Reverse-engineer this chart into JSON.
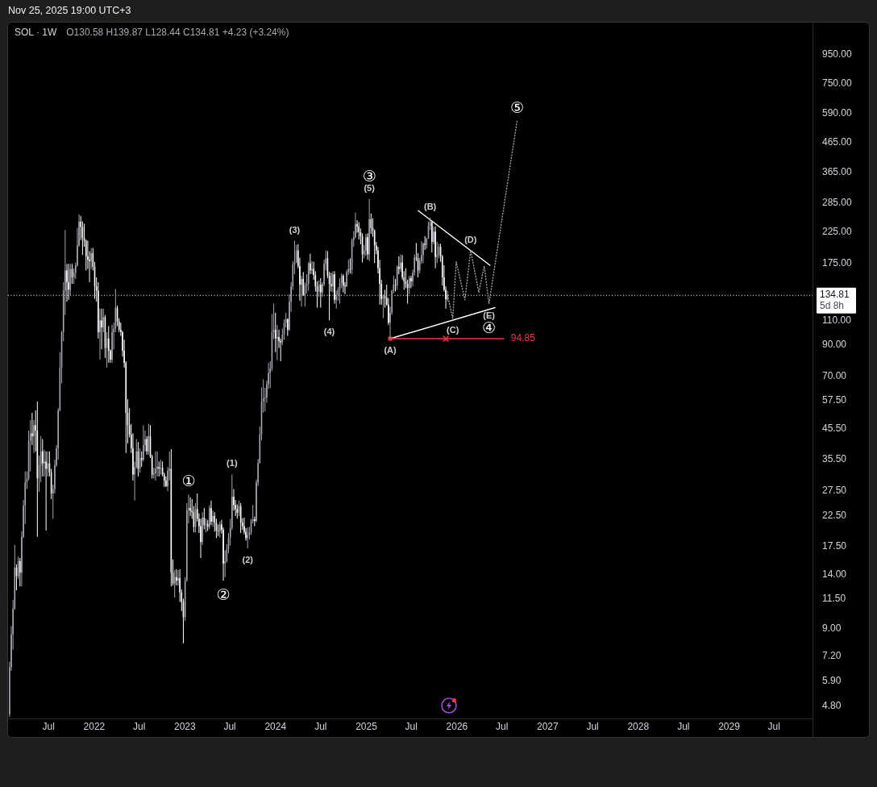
{
  "chart_data": {
    "type": "candlestick",
    "title": "SOL · 1W",
    "subtitle": "O130.58 H139.87 L128.44 C134.81 +4.23 (+3.24%)",
    "x": [
      "2021-01-25",
      "2021-02-01",
      "2021-02-08",
      "2021-02-15",
      "2021-02-22",
      "2021-03-01",
      "2021-03-08",
      "2021-03-15",
      "2021-03-22",
      "2021-03-29",
      "2021-04-05",
      "2021-04-12",
      "2021-04-19",
      "2021-04-26",
      "2021-05-03",
      "2021-05-10",
      "2021-05-17",
      "2021-05-24",
      "2021-05-31",
      "2021-06-07",
      "2021-06-14",
      "2021-06-21",
      "2021-06-28",
      "2021-07-05",
      "2021-07-12",
      "2021-07-19",
      "2021-07-26",
      "2021-08-02",
      "2021-08-09",
      "2021-08-16",
      "2021-08-23",
      "2021-08-30",
      "2021-09-06",
      "2021-09-13",
      "2021-09-20",
      "2021-09-27",
      "2021-10-04",
      "2021-10-11",
      "2021-10-18",
      "2021-10-25",
      "2021-11-01",
      "2021-11-08",
      "2021-11-15",
      "2021-11-22",
      "2021-11-29",
      "2021-12-06",
      "2021-12-13",
      "2021-12-20",
      "2021-12-27",
      "2022-01-03",
      "2022-01-10",
      "2022-01-17",
      "2022-01-24",
      "2022-01-31",
      "2022-02-07",
      "2022-02-14",
      "2022-02-21",
      "2022-02-28",
      "2022-03-07",
      "2022-03-14",
      "2022-03-21",
      "2022-03-28",
      "2022-04-04",
      "2022-04-11",
      "2022-04-18",
      "2022-04-25",
      "2022-05-02",
      "2022-05-09",
      "2022-05-16",
      "2022-05-23",
      "2022-05-30",
      "2022-06-06",
      "2022-06-13",
      "2022-06-20",
      "2022-06-27",
      "2022-07-04",
      "2022-07-11",
      "2022-07-18",
      "2022-07-25",
      "2022-08-01",
      "2022-08-08",
      "2022-08-15",
      "2022-08-22",
      "2022-08-29",
      "2022-09-05",
      "2022-09-12",
      "2022-09-19",
      "2022-09-26",
      "2022-10-03",
      "2022-10-10",
      "2022-10-17",
      "2022-10-24",
      "2022-10-31",
      "2022-11-07",
      "2022-11-14",
      "2022-11-21",
      "2022-11-28",
      "2022-12-05",
      "2022-12-12",
      "2022-12-19",
      "2022-12-26",
      "2023-01-02",
      "2023-01-09",
      "2023-01-16",
      "2023-01-23",
      "2023-01-30",
      "2023-02-06",
      "2023-02-13",
      "2023-02-20",
      "2023-02-27",
      "2023-03-06",
      "2023-03-13",
      "2023-03-20",
      "2023-03-27",
      "2023-04-03",
      "2023-04-10",
      "2023-04-17",
      "2023-04-24",
      "2023-05-01",
      "2023-05-08",
      "2023-05-15",
      "2023-05-22",
      "2023-05-29",
      "2023-06-05",
      "2023-06-12",
      "2023-06-19",
      "2023-06-26",
      "2023-07-03",
      "2023-07-10",
      "2023-07-17",
      "2023-07-24",
      "2023-07-31",
      "2023-08-07",
      "2023-08-14",
      "2023-08-21",
      "2023-08-28",
      "2023-09-04",
      "2023-09-11",
      "2023-09-18",
      "2023-09-25",
      "2023-10-02",
      "2023-10-09",
      "2023-10-16",
      "2023-10-23",
      "2023-10-30",
      "2023-11-06",
      "2023-11-13",
      "2023-11-20",
      "2023-11-27",
      "2023-12-04",
      "2023-12-11",
      "2023-12-18",
      "2023-12-25",
      "2024-01-01",
      "2024-01-08",
      "2024-01-15",
      "2024-01-22",
      "2024-01-29",
      "2024-02-05",
      "2024-02-12",
      "2024-02-19",
      "2024-02-26",
      "2024-03-04",
      "2024-03-11",
      "2024-03-18",
      "2024-03-25",
      "2024-04-01",
      "2024-04-08",
      "2024-04-15",
      "2024-04-22",
      "2024-04-29",
      "2024-05-06",
      "2024-05-13",
      "2024-05-20",
      "2024-05-27",
      "2024-06-03",
      "2024-06-10",
      "2024-06-17",
      "2024-06-24",
      "2024-07-01",
      "2024-07-08",
      "2024-07-15",
      "2024-07-22",
      "2024-07-29",
      "2024-08-05",
      "2024-08-12",
      "2024-08-19",
      "2024-08-26",
      "2024-09-02",
      "2024-09-09",
      "2024-09-16",
      "2024-09-23",
      "2024-09-30",
      "2024-10-07",
      "2024-10-14",
      "2024-10-21",
      "2024-10-28",
      "2024-11-04",
      "2024-11-11",
      "2024-11-18",
      "2024-11-25",
      "2024-12-02",
      "2024-12-09",
      "2024-12-16",
      "2024-12-23",
      "2024-12-30",
      "2025-01-06",
      "2025-01-13",
      "2025-01-20",
      "2025-01-27",
      "2025-02-03",
      "2025-02-10",
      "2025-02-17",
      "2025-02-24",
      "2025-03-03",
      "2025-03-10",
      "2025-03-17",
      "2025-03-24",
      "2025-03-31",
      "2025-04-07",
      "2025-04-14",
      "2025-04-21",
      "2025-04-28",
      "2025-05-05",
      "2025-05-12",
      "2025-05-19",
      "2025-05-26",
      "2025-06-02",
      "2025-06-09",
      "2025-06-16",
      "2025-06-23",
      "2025-06-30",
      "2025-07-07",
      "2025-07-14",
      "2025-07-21",
      "2025-07-28",
      "2025-08-04",
      "2025-08-11",
      "2025-08-18",
      "2025-08-25",
      "2025-09-01",
      "2025-09-08",
      "2025-09-15",
      "2025-09-22",
      "2025-09-29",
      "2025-10-06",
      "2025-10-13",
      "2025-10-20",
      "2025-10-27",
      "2025-11-03",
      "2025-11-10",
      "2025-11-17",
      "2025-11-24"
    ],
    "ohlc": [
      [
        4.5,
        6.9,
        4.4,
        6.6
      ],
      [
        6.6,
        9.2,
        6.4,
        8.6
      ],
      [
        8.6,
        11.4,
        7.6,
        10.6
      ],
      [
        10.6,
        17.8,
        10.5,
        14.8
      ],
      [
        14.8,
        15.2,
        12.3,
        13.8
      ],
      [
        13.8,
        16.2,
        13.5,
        15.6
      ],
      [
        15.6,
        16.0,
        12.7,
        14.2
      ],
      [
        14.2,
        19.9,
        12.7,
        19.0
      ],
      [
        19.0,
        25.6,
        18.8,
        24.5
      ],
      [
        24.5,
        32.3,
        21.1,
        29.6
      ],
      [
        29.6,
        32.3,
        28.0,
        30.4
      ],
      [
        30.4,
        45.0,
        30.0,
        41.5
      ],
      [
        41.5,
        49.0,
        32.3,
        44.0
      ],
      [
        44.0,
        52.0,
        40.0,
        43.0
      ],
      [
        43.0,
        49.0,
        37.5,
        47.0
      ],
      [
        47.0,
        53.0,
        38.0,
        45.0
      ],
      [
        45.0,
        57.0,
        19.0,
        30.5
      ],
      [
        30.5,
        36.7,
        27.4,
        34.0
      ],
      [
        34.0,
        43.0,
        29.6,
        38.0
      ],
      [
        38.0,
        42.0,
        31.0,
        34.5
      ],
      [
        34.5,
        38.5,
        31.0,
        35.0
      ],
      [
        35.0,
        38.0,
        20.0,
        33.0
      ],
      [
        33.0,
        38.0,
        31.0,
        34.5
      ],
      [
        34.5,
        38.0,
        31.0,
        32.0
      ],
      [
        32.0,
        33.0,
        25.8,
        27.0
      ],
      [
        27.0,
        29.0,
        22.0,
        28.0
      ],
      [
        28.0,
        35.5,
        27.0,
        34.0
      ],
      [
        34.0,
        40.0,
        33.5,
        39.0
      ],
      [
        39.0,
        54.0,
        35.5,
        53.0
      ],
      [
        53.0,
        85.0,
        52.6,
        75.0
      ],
      [
        75.0,
        101,
        66.0,
        100
      ],
      [
        100,
        150,
        93.0,
        140
      ],
      [
        140,
        229,
        115,
        165
      ],
      [
        165,
        174,
        128,
        150
      ],
      [
        150,
        174,
        130,
        141
      ],
      [
        141,
        174,
        135,
        167
      ],
      [
        167,
        174,
        148,
        156
      ],
      [
        156,
        168,
        148,
        162
      ],
      [
        162,
        176,
        154,
        172
      ],
      [
        172,
        233,
        170,
        202
      ],
      [
        202,
        260,
        200,
        245
      ],
      [
        245,
        257,
        211,
        235
      ],
      [
        235,
        246,
        187,
        215
      ],
      [
        215,
        241,
        200,
        210
      ],
      [
        210,
        212,
        165,
        185
      ],
      [
        185,
        210,
        167,
        180
      ],
      [
        180,
        193,
        150,
        178
      ],
      [
        178,
        198,
        167,
        190
      ],
      [
        190,
        198,
        165,
        170
      ],
      [
        170,
        177,
        131,
        145
      ],
      [
        145,
        156,
        128,
        140
      ],
      [
        140,
        150,
        95,
        100
      ],
      [
        100,
        121,
        80,
        110
      ],
      [
        110,
        121,
        87,
        104
      ],
      [
        104,
        121,
        100,
        113
      ],
      [
        113,
        115,
        81,
        88
      ],
      [
        88,
        100,
        75,
        95
      ],
      [
        95,
        105,
        78,
        86
      ],
      [
        86,
        87,
        78,
        80
      ],
      [
        80,
        106,
        78,
        100
      ],
      [
        100,
        108,
        87,
        103
      ],
      [
        103,
        142,
        100,
        122
      ],
      [
        122,
        124,
        105,
        109
      ],
      [
        109,
        112,
        100,
        102
      ],
      [
        102,
        108,
        97,
        100
      ],
      [
        100,
        101,
        82,
        86
      ],
      [
        86,
        94,
        75,
        78
      ],
      [
        78,
        79,
        37.5,
        52
      ],
      [
        52,
        58,
        40.5,
        47
      ],
      [
        47,
        54,
        42.5,
        43.5
      ],
      [
        43.5,
        47.5,
        37.5,
        39
      ],
      [
        39,
        44,
        30,
        31.5
      ],
      [
        31.5,
        35,
        25.5,
        33.5
      ],
      [
        33.5,
        42,
        33,
        38
      ],
      [
        38,
        41,
        31,
        33
      ],
      [
        33,
        39,
        32,
        36
      ],
      [
        36,
        38,
        33.5,
        35.5
      ],
      [
        35.5,
        47,
        35,
        40
      ],
      [
        40,
        45,
        38,
        42
      ],
      [
        42,
        43,
        37,
        38
      ],
      [
        38,
        47.5,
        37,
        43
      ],
      [
        43,
        47,
        36,
        36.5
      ],
      [
        36.5,
        37,
        30.5,
        31.5
      ],
      [
        31.5,
        33.3,
        30.5,
        31.8
      ],
      [
        31.8,
        38,
        30,
        33
      ],
      [
        33,
        38,
        31,
        33.5
      ],
      [
        33.5,
        35,
        31,
        33
      ],
      [
        33,
        35.5,
        31.5,
        33.3
      ],
      [
        33.3,
        35,
        31,
        31.5
      ],
      [
        31.5,
        32,
        28.5,
        30
      ],
      [
        30,
        31,
        28.5,
        28.6
      ],
      [
        28.6,
        33.5,
        27.5,
        32.5
      ],
      [
        32.5,
        38,
        30,
        33
      ],
      [
        33,
        38.7,
        12.7,
        14.2
      ],
      [
        14.2,
        15.8,
        12.8,
        13.0
      ],
      [
        13.0,
        14.5,
        11.6,
        13.7
      ],
      [
        13.7,
        14.6,
        12.8,
        13.3
      ],
      [
        13.3,
        14.5,
        12.8,
        13.6
      ],
      [
        13.6,
        14.6,
        11.2,
        12.1
      ],
      [
        12.1,
        12.4,
        10.4,
        11.2
      ],
      [
        11.2,
        11.5,
        8.0,
        9.9
      ],
      [
        9.9,
        13.7,
        9.6,
        13.3
      ],
      [
        13.3,
        25.0,
        13.2,
        23.6
      ],
      [
        23.6,
        26.8,
        21.2,
        24.0
      ],
      [
        24.0,
        26.2,
        22.5,
        23.5
      ],
      [
        23.5,
        25.8,
        22.0,
        23.2
      ],
      [
        23.2,
        24.4,
        19.7,
        20.6
      ],
      [
        20.6,
        25.0,
        19.7,
        23.8
      ],
      [
        23.8,
        27.0,
        21.5,
        22.0
      ],
      [
        22.0,
        23.0,
        19.6,
        20.7
      ],
      [
        20.7,
        22.0,
        16.0,
        18.2
      ],
      [
        18.2,
        23.2,
        17.8,
        22.2
      ],
      [
        22.2,
        24.0,
        20.2,
        20.9
      ],
      [
        20.9,
        22.0,
        19.7,
        21.1
      ],
      [
        21.1,
        21.8,
        19.9,
        20.6
      ],
      [
        20.6,
        24.6,
        20.2,
        24.0
      ],
      [
        24.0,
        25.5,
        20.9,
        21.5
      ],
      [
        21.5,
        23.5,
        20.6,
        22.5
      ],
      [
        22.5,
        23.2,
        19.8,
        21.3
      ],
      [
        21.3,
        22.0,
        18.8,
        20.0
      ],
      [
        20.0,
        21.0,
        19.1,
        19.9
      ],
      [
        19.9,
        21.5,
        18.9,
        21.0
      ],
      [
        21.0,
        21.8,
        19.5,
        20.1
      ],
      [
        20.1,
        20.5,
        13.3,
        15.3
      ],
      [
        15.3,
        17.0,
        13.7,
        15.6
      ],
      [
        15.6,
        17.9,
        15.4,
        17.2
      ],
      [
        17.2,
        19.6,
        16.6,
        18.9
      ],
      [
        18.9,
        22.0,
        17.7,
        20.4
      ],
      [
        20.4,
        31.5,
        20.1,
        26.3
      ],
      [
        26.3,
        28.0,
        23.5,
        24.6
      ],
      [
        24.6,
        25.6,
        22.5,
        23.8
      ],
      [
        23.8,
        24.7,
        22.0,
        23.1
      ],
      [
        23.1,
        25.5,
        22.5,
        24.4
      ],
      [
        24.4,
        25.0,
        19.6,
        21.3
      ],
      [
        21.3,
        22.1,
        20.1,
        20.7
      ],
      [
        20.7,
        22.2,
        19.4,
        19.8
      ],
      [
        19.8,
        20.4,
        18.4,
        18.8
      ],
      [
        18.8,
        20.5,
        17.3,
        19.3
      ],
      [
        19.3,
        20.6,
        18.6,
        19.7
      ],
      [
        19.7,
        22.0,
        19.3,
        21.6
      ],
      [
        21.6,
        24.6,
        21.2,
        21.9
      ],
      [
        21.9,
        22.4,
        20.7,
        21.6
      ],
      [
        21.6,
        30.2,
        21.4,
        29.5
      ],
      [
        29.5,
        35.7,
        28.7,
        34.6
      ],
      [
        34.6,
        46.5,
        34.4,
        43.6
      ],
      [
        43.6,
        63.8,
        41.5,
        57.0
      ],
      [
        57.0,
        68.2,
        52.1,
        58.5
      ],
      [
        58.5,
        63.6,
        52.5,
        58.9
      ],
      [
        58.9,
        67.5,
        56.4,
        65.5
      ],
      [
        65.5,
        78.0,
        63.1,
        71.8
      ],
      [
        71.8,
        79.0,
        63.5,
        74.5
      ],
      [
        74.5,
        116,
        73.0,
        100
      ],
      [
        100,
        126,
        94.5,
        102
      ],
      [
        102,
        117,
        85,
        95
      ],
      [
        95,
        106,
        79.6,
        96
      ],
      [
        96,
        102,
        88,
        93
      ],
      [
        93,
        95,
        79,
        92
      ],
      [
        92,
        103,
        90,
        98
      ],
      [
        98,
        111,
        94,
        108
      ],
      [
        108,
        117,
        104,
        111
      ],
      [
        111,
        112,
        97,
        102
      ],
      [
        102,
        136,
        101,
        128
      ],
      [
        128,
        150,
        118,
        145
      ],
      [
        145,
        178,
        141,
        173
      ],
      [
        173,
        210,
        160,
        176
      ],
      [
        176,
        203,
        175,
        194
      ],
      [
        194,
        204,
        168,
        171
      ],
      [
        171,
        183,
        129,
        147
      ],
      [
        147,
        158,
        123,
        154
      ],
      [
        154,
        163,
        134,
        135
      ],
      [
        135,
        150,
        123,
        146
      ],
      [
        146,
        160,
        137,
        148
      ],
      [
        148,
        177,
        140,
        175
      ],
      [
        175,
        189,
        160,
        165
      ],
      [
        165,
        178,
        160,
        167
      ],
      [
        167,
        177,
        153,
        159
      ],
      [
        159,
        164,
        139,
        145
      ],
      [
        145,
        151,
        122,
        139
      ],
      [
        139,
        152,
        133,
        147
      ],
      [
        147,
        155,
        122,
        138
      ],
      [
        138,
        150,
        133,
        148
      ],
      [
        148,
        180,
        145,
        174
      ],
      [
        174,
        194,
        165,
        182
      ],
      [
        182,
        193,
        155,
        158
      ],
      [
        158,
        163,
        110,
        148
      ],
      [
        148,
        162,
        139,
        145
      ],
      [
        145,
        164,
        138,
        160
      ],
      [
        160,
        164,
        126,
        130
      ],
      [
        130,
        140,
        121,
        135
      ],
      [
        135,
        144,
        129,
        141
      ],
      [
        141,
        155,
        126,
        149
      ],
      [
        149,
        161,
        143,
        158
      ],
      [
        158,
        160,
        138,
        146
      ],
      [
        146,
        150,
        136,
        145
      ],
      [
        145,
        166,
        144,
        163
      ],
      [
        163,
        180,
        159,
        167
      ],
      [
        167,
        182,
        161,
        166
      ],
      [
        166,
        214,
        160,
        211
      ],
      [
        211,
        227,
        200,
        216
      ],
      [
        216,
        264,
        214,
        240
      ],
      [
        240,
        248,
        224,
        236
      ],
      [
        236,
        244,
        212,
        225
      ],
      [
        225,
        232,
        204,
        218
      ],
      [
        218,
        223,
        176,
        188
      ],
      [
        188,
        203,
        182,
        194
      ],
      [
        194,
        222,
        186,
        216
      ],
      [
        216,
        223,
        180,
        188
      ],
      [
        188,
        295,
        178,
        250
      ],
      [
        250,
        262,
        222,
        233
      ],
      [
        233,
        252,
        217,
        228
      ],
      [
        228,
        230,
        175,
        202
      ],
      [
        202,
        208,
        188,
        194
      ],
      [
        194,
        200,
        161,
        168
      ],
      [
        168,
        180,
        125,
        148
      ],
      [
        148,
        153,
        125,
        131
      ],
      [
        131,
        136,
        112,
        134
      ],
      [
        134,
        141,
        122,
        132
      ],
      [
        132,
        147,
        124,
        125
      ],
      [
        125,
        132,
        106,
        108
      ],
      [
        108,
        123,
        94.85,
        117
      ],
      [
        117,
        141,
        115,
        140
      ],
      [
        140,
        158,
        137,
        147
      ],
      [
        147,
        154,
        139,
        146
      ],
      [
        146,
        172,
        141,
        170
      ],
      [
        170,
        185,
        160,
        167
      ],
      [
        167,
        188,
        163,
        176
      ],
      [
        176,
        187,
        153,
        156
      ],
      [
        156,
        164,
        141,
        151
      ],
      [
        151,
        168,
        143,
        148
      ],
      [
        148,
        153,
        126,
        143
      ],
      [
        143,
        158,
        136,
        155
      ],
      [
        155,
        158,
        143,
        151
      ],
      [
        151,
        166,
        145,
        162
      ],
      [
        162,
        188,
        158,
        183
      ],
      [
        183,
        206,
        178,
        182
      ],
      [
        182,
        190,
        156,
        165
      ],
      [
        165,
        183,
        161,
        178
      ],
      [
        178,
        209,
        174,
        187
      ],
      [
        187,
        207,
        175,
        205
      ],
      [
        205,
        218,
        195,
        203
      ],
      [
        203,
        215,
        197,
        214
      ],
      [
        214,
        245,
        213,
        237
      ],
      [
        237,
        253,
        229,
        244
      ],
      [
        244,
        246,
        191,
        208
      ],
      [
        208,
        235,
        204,
        226
      ],
      [
        226,
        236,
        168,
        184
      ],
      [
        184,
        208,
        175,
        187
      ],
      [
        187,
        205,
        182,
        200
      ],
      [
        200,
        205,
        177,
        185
      ],
      [
        185,
        187,
        146,
        156
      ],
      [
        156,
        172,
        139,
        141
      ],
      [
        141,
        145,
        121,
        130.58
      ],
      [
        130.58,
        139.87,
        128.44,
        134.81
      ]
    ],
    "colors": [
      "#a3a6af",
      "#a3a6af",
      "#a3a6af",
      "#a3a6af",
      "#ffffff",
      "#a3a6af",
      "#ffffff",
      "#a3a6af",
      "#a3a6af",
      "#a3a6af",
      "#a3a6af",
      "#a3a6af",
      "#a3a6af",
      "#ffffff",
      "#a3a6af",
      "#ffffff",
      "#ffffff",
      "#a3a6af",
      "#a3a6af",
      "#ffffff",
      "#a3a6af",
      "#ffffff",
      "#a3a6af",
      "#ffffff",
      "#ffffff",
      "#a3a6af",
      "#a3a6af",
      "#a3a6af",
      "#a3a6af",
      "#a3a6af",
      "#a3a6af",
      "#a3a6af",
      "#a3a6af",
      "#ffffff",
      "#ffffff",
      "#a3a6af",
      "#ffffff",
      "#a3a6af",
      "#a3a6af",
      "#a3a6af",
      "#a3a6af",
      "#ffffff",
      "#ffffff",
      "#ffffff",
      "#ffffff",
      "#ffffff",
      "#ffffff",
      "#a3a6af",
      "#ffffff",
      "#ffffff",
      "#ffffff",
      "#ffffff",
      "#a3a6af",
      "#ffffff",
      "#a3a6af",
      "#ffffff",
      "#a3a6af",
      "#ffffff",
      "#ffffff",
      "#a3a6af",
      "#a3a6af",
      "#a3a6af",
      "#ffffff",
      "#ffffff",
      "#ffffff",
      "#ffffff",
      "#ffffff",
      "#ffffff",
      "#ffffff",
      "#ffffff",
      "#ffffff",
      "#ffffff",
      "#a3a6af",
      "#a3a6af",
      "#ffffff",
      "#a3a6af",
      "#ffffff",
      "#a3a6af",
      "#a3a6af",
      "#ffffff",
      "#a3a6af",
      "#ffffff",
      "#ffffff",
      "#a3a6af",
      "#a3a6af",
      "#a3a6af",
      "#ffffff",
      "#a3a6af",
      "#ffffff",
      "#ffffff",
      "#ffffff",
      "#a3a6af",
      "#a3a6af",
      "#ffffff",
      "#ffffff",
      "#a3a6af",
      "#ffffff",
      "#a3a6af",
      "#ffffff",
      "#ffffff",
      "#ffffff",
      "#a3a6af",
      "#a3a6af",
      "#a3a6af",
      "#ffffff",
      "#ffffff",
      "#ffffff",
      "#a3a6af",
      "#ffffff",
      "#ffffff",
      "#ffffff",
      "#a3a6af",
      "#ffffff",
      "#a3a6af",
      "#ffffff",
      "#a3a6af",
      "#ffffff",
      "#a3a6af",
      "#ffffff",
      "#ffffff",
      "#ffffff",
      "#a3a6af",
      "#ffffff",
      "#ffffff",
      "#a3a6af",
      "#a3a6af",
      "#a3a6af",
      "#a3a6af",
      "#a3a6af",
      "#ffffff",
      "#ffffff",
      "#ffffff",
      "#a3a6af",
      "#ffffff",
      "#ffffff",
      "#ffffff",
      "#ffffff",
      "#a3a6af",
      "#a3a6af",
      "#a3a6af",
      "#a3a6af",
      "#ffffff",
      "#a3a6af",
      "#a3a6af",
      "#a3a6af",
      "#a3a6af",
      "#a3a6af",
      "#a3a6af",
      "#a3a6af",
      "#a3a6af",
      "#a3a6af",
      "#a3a6af",
      "#a3a6af",
      "#ffffff",
      "#a3a6af",
      "#ffffff",
      "#ffffff",
      "#a3a6af",
      "#a3a6af",
      "#a3a6af",
      "#ffffff",
      "#a3a6af",
      "#a3a6af",
      "#a3a6af",
      "#a3a6af",
      "#a3a6af",
      "#ffffff",
      "#ffffff",
      "#a3a6af",
      "#ffffff",
      "#a3a6af",
      "#a3a6af",
      "#a3a6af",
      "#ffffff",
      "#a3a6af",
      "#ffffff",
      "#ffffff",
      "#ffffff",
      "#a3a6af",
      "#ffffff",
      "#a3a6af",
      "#a3a6af",
      "#a3a6af",
      "#ffffff",
      "#ffffff",
      "#ffffff",
      "#a3a6af",
      "#ffffff",
      "#a3a6af",
      "#a3a6af",
      "#a3a6af",
      "#a3a6af",
      "#ffffff",
      "#ffffff",
      "#a3a6af",
      "#a3a6af",
      "#ffffff",
      "#a3a6af",
      "#a3a6af",
      "#a3a6af",
      "#ffffff",
      "#ffffff",
      "#ffffff",
      "#ffffff",
      "#a3a6af",
      "#a3a6af",
      "#ffffff",
      "#a3a6af",
      "#ffffff",
      "#ffffff",
      "#ffffff",
      "#ffffff",
      "#ffffff",
      "#ffffff",
      "#ffffff",
      "#a3a6af",
      "#ffffff",
      "#ffffff",
      "#ffffff",
      "#a3a6af",
      "#a3a6af",
      "#a3a6af",
      "#ffffff",
      "#a3a6af",
      "#ffffff",
      "#a3a6af",
      "#ffffff",
      "#ffffff",
      "#ffffff",
      "#ffffff",
      "#a3a6af",
      "#ffffff",
      "#a3a6af",
      "#a3a6af",
      "#ffffff",
      "#ffffff",
      "#a3a6af",
      "#a3a6af",
      "#a3a6af",
      "#ffffff",
      "#a3a6af",
      "#a3a6af",
      "#a3a6af",
      "#ffffff",
      "#a3a6af",
      "#ffffff",
      "#a3a6af",
      "#a3a6af",
      "#ffffff",
      "#ffffff",
      "#ffffff",
      "#ffffff",
      "#a3a6af"
    ],
    "series": [
      {
        "type": "line",
        "x": [
          "2025-07-29",
          "2026-05-14"
        ],
        "values": [
          268,
          172
        ],
        "color": "#ffffff"
      },
      {
        "type": "line",
        "x": [
          "2025-04-07",
          "2026-06-03"
        ],
        "values": [
          94.85,
          122
        ],
        "color": "#ffffff"
      },
      {
        "type": "line",
        "x": [
          "2025-11-24",
          "2025-12-15",
          "2025-12-29",
          "2026-02-02",
          "2026-02-25",
          "2026-03-30",
          "2026-04-21",
          "2026-05-10",
          "2026-08-31"
        ],
        "values": [
          134.81,
          112,
          177,
          130,
          194,
          138,
          171,
          126,
          555
        ],
        "color": "#9e9e9e",
        "line_style": "dotted"
      },
      {
        "type": "line",
        "x": [
          "2025-04-07",
          "2026-07-08"
        ],
        "values": [
          94.85,
          94.85
        ],
        "color": "#f23645",
        "value_labels": [
          null,
          "94.85"
        ]
      },
      {
        "type": "scatter",
        "x": [
          "2025-04-07"
        ],
        "values": [
          94.85
        ],
        "color": "#f23645",
        "marker": "square"
      },
      {
        "type": "scatter",
        "x": [
          "2025-11-17"
        ],
        "values": [
          94.85
        ],
        "color": "#f23645",
        "marker": "cross"
      }
    ],
    "xlim": [
      "2021-01-19",
      "2029-12-03"
    ],
    "ylim": [
      4.35,
      1230
    ],
    "log": "y",
    "xticks": [
      {
        "value": "2021-07-01",
        "label": "Jul"
      },
      {
        "value": "2022-01-01",
        "label": "2022"
      },
      {
        "value": "2022-07-01",
        "label": "Jul"
      },
      {
        "value": "2023-01-01",
        "label": "2023"
      },
      {
        "value": "2023-07-01",
        "label": "Jul"
      },
      {
        "value": "2024-01-01",
        "label": "2024"
      },
      {
        "value": "2024-07-01",
        "label": "Jul"
      },
      {
        "value": "2025-01-01",
        "label": "2025"
      },
      {
        "value": "2025-07-01",
        "label": "Jul"
      },
      {
        "value": "2026-01-01",
        "label": "2026"
      },
      {
        "value": "2026-07-01",
        "label": "Jul"
      },
      {
        "value": "2027-01-01",
        "label": "2027"
      },
      {
        "value": "2027-07-01",
        "label": "Jul"
      },
      {
        "value": "2028-01-01",
        "label": "2028"
      },
      {
        "value": "2028-07-01",
        "label": "Jul"
      },
      {
        "value": "2029-01-01",
        "label": "2029"
      },
      {
        "value": "2029-07-01",
        "label": "Jul"
      }
    ],
    "yticks": [
      {
        "value": 950,
        "label": "950.00"
      },
      {
        "value": 750,
        "label": "750.00"
      },
      {
        "value": 590,
        "label": "590.00"
      },
      {
        "value": 465,
        "label": "465.00"
      },
      {
        "value": 365,
        "label": "365.00"
      },
      {
        "value": 285,
        "label": "285.00"
      },
      {
        "value": 225,
        "label": "225.00"
      },
      {
        "value": 175,
        "label": "175.00"
      },
      {
        "value": 110,
        "label": "110.00"
      },
      {
        "value": 90,
        "label": "90.00"
      },
      {
        "value": 70,
        "label": "70.00"
      },
      {
        "value": 57.5,
        "label": "57.50"
      },
      {
        "value": 45.5,
        "label": "45.50"
      },
      {
        "value": 35.5,
        "label": "35.50"
      },
      {
        "value": 27.5,
        "label": "27.50"
      },
      {
        "value": 22.5,
        "label": "22.50"
      },
      {
        "value": 17.5,
        "label": "17.50"
      },
      {
        "value": 14,
        "label": "14.00"
      },
      {
        "value": 11.5,
        "label": "11.50"
      },
      {
        "value": 9,
        "label": "9.00"
      },
      {
        "value": 7.2,
        "label": "7.20"
      },
      {
        "value": 5.9,
        "label": "5.90"
      },
      {
        "value": 4.8,
        "label": "4.80"
      }
    ],
    "ref_lines": [
      {
        "axis": "y",
        "value": 134.81,
        "label": "134.81\n5d 8h",
        "color": "#ffffff",
        "line_style": "dotted"
      }
    ],
    "annotations": [
      "Nov 25, 2025 19:00 UTC+3",
      {
        "text": "①",
        "x": "2023-01-16",
        "y": 26.8
      },
      {
        "text": "②",
        "x": "2023-06-05",
        "y": 13.3
      },
      {
        "text": "(1)",
        "x": "2023-07-10",
        "y": 31.5
      },
      {
        "text": "(2)",
        "x": "2023-09-11",
        "y": 17.3
      },
      {
        "text": "(3)",
        "x": "2024-03-18",
        "y": 210
      },
      {
        "text": "(4)",
        "x": "2024-08-05",
        "y": 110
      },
      {
        "text": "(5)",
        "x": "2025-01-13",
        "y": 295
      },
      {
        "text": "③",
        "x": "2025-01-13",
        "y": 295
      },
      {
        "text": "(A)",
        "x": "2025-04-07",
        "y": 94.85
      },
      {
        "text": "(B)",
        "x": "2025-09-15",
        "y": 253
      },
      {
        "text": "(C)",
        "x": "2025-12-15",
        "y": 112
      },
      {
        "text": "(D)",
        "x": "2026-02-25",
        "y": 194
      },
      {
        "text": "(E)",
        "x": "2026-05-10",
        "y": 126
      },
      {
        "text": "④",
        "x": "2026-05-10",
        "y": 126
      },
      {
        "text": "⑤",
        "x": "2026-08-31",
        "y": 555
      }
    ]
  }
}
